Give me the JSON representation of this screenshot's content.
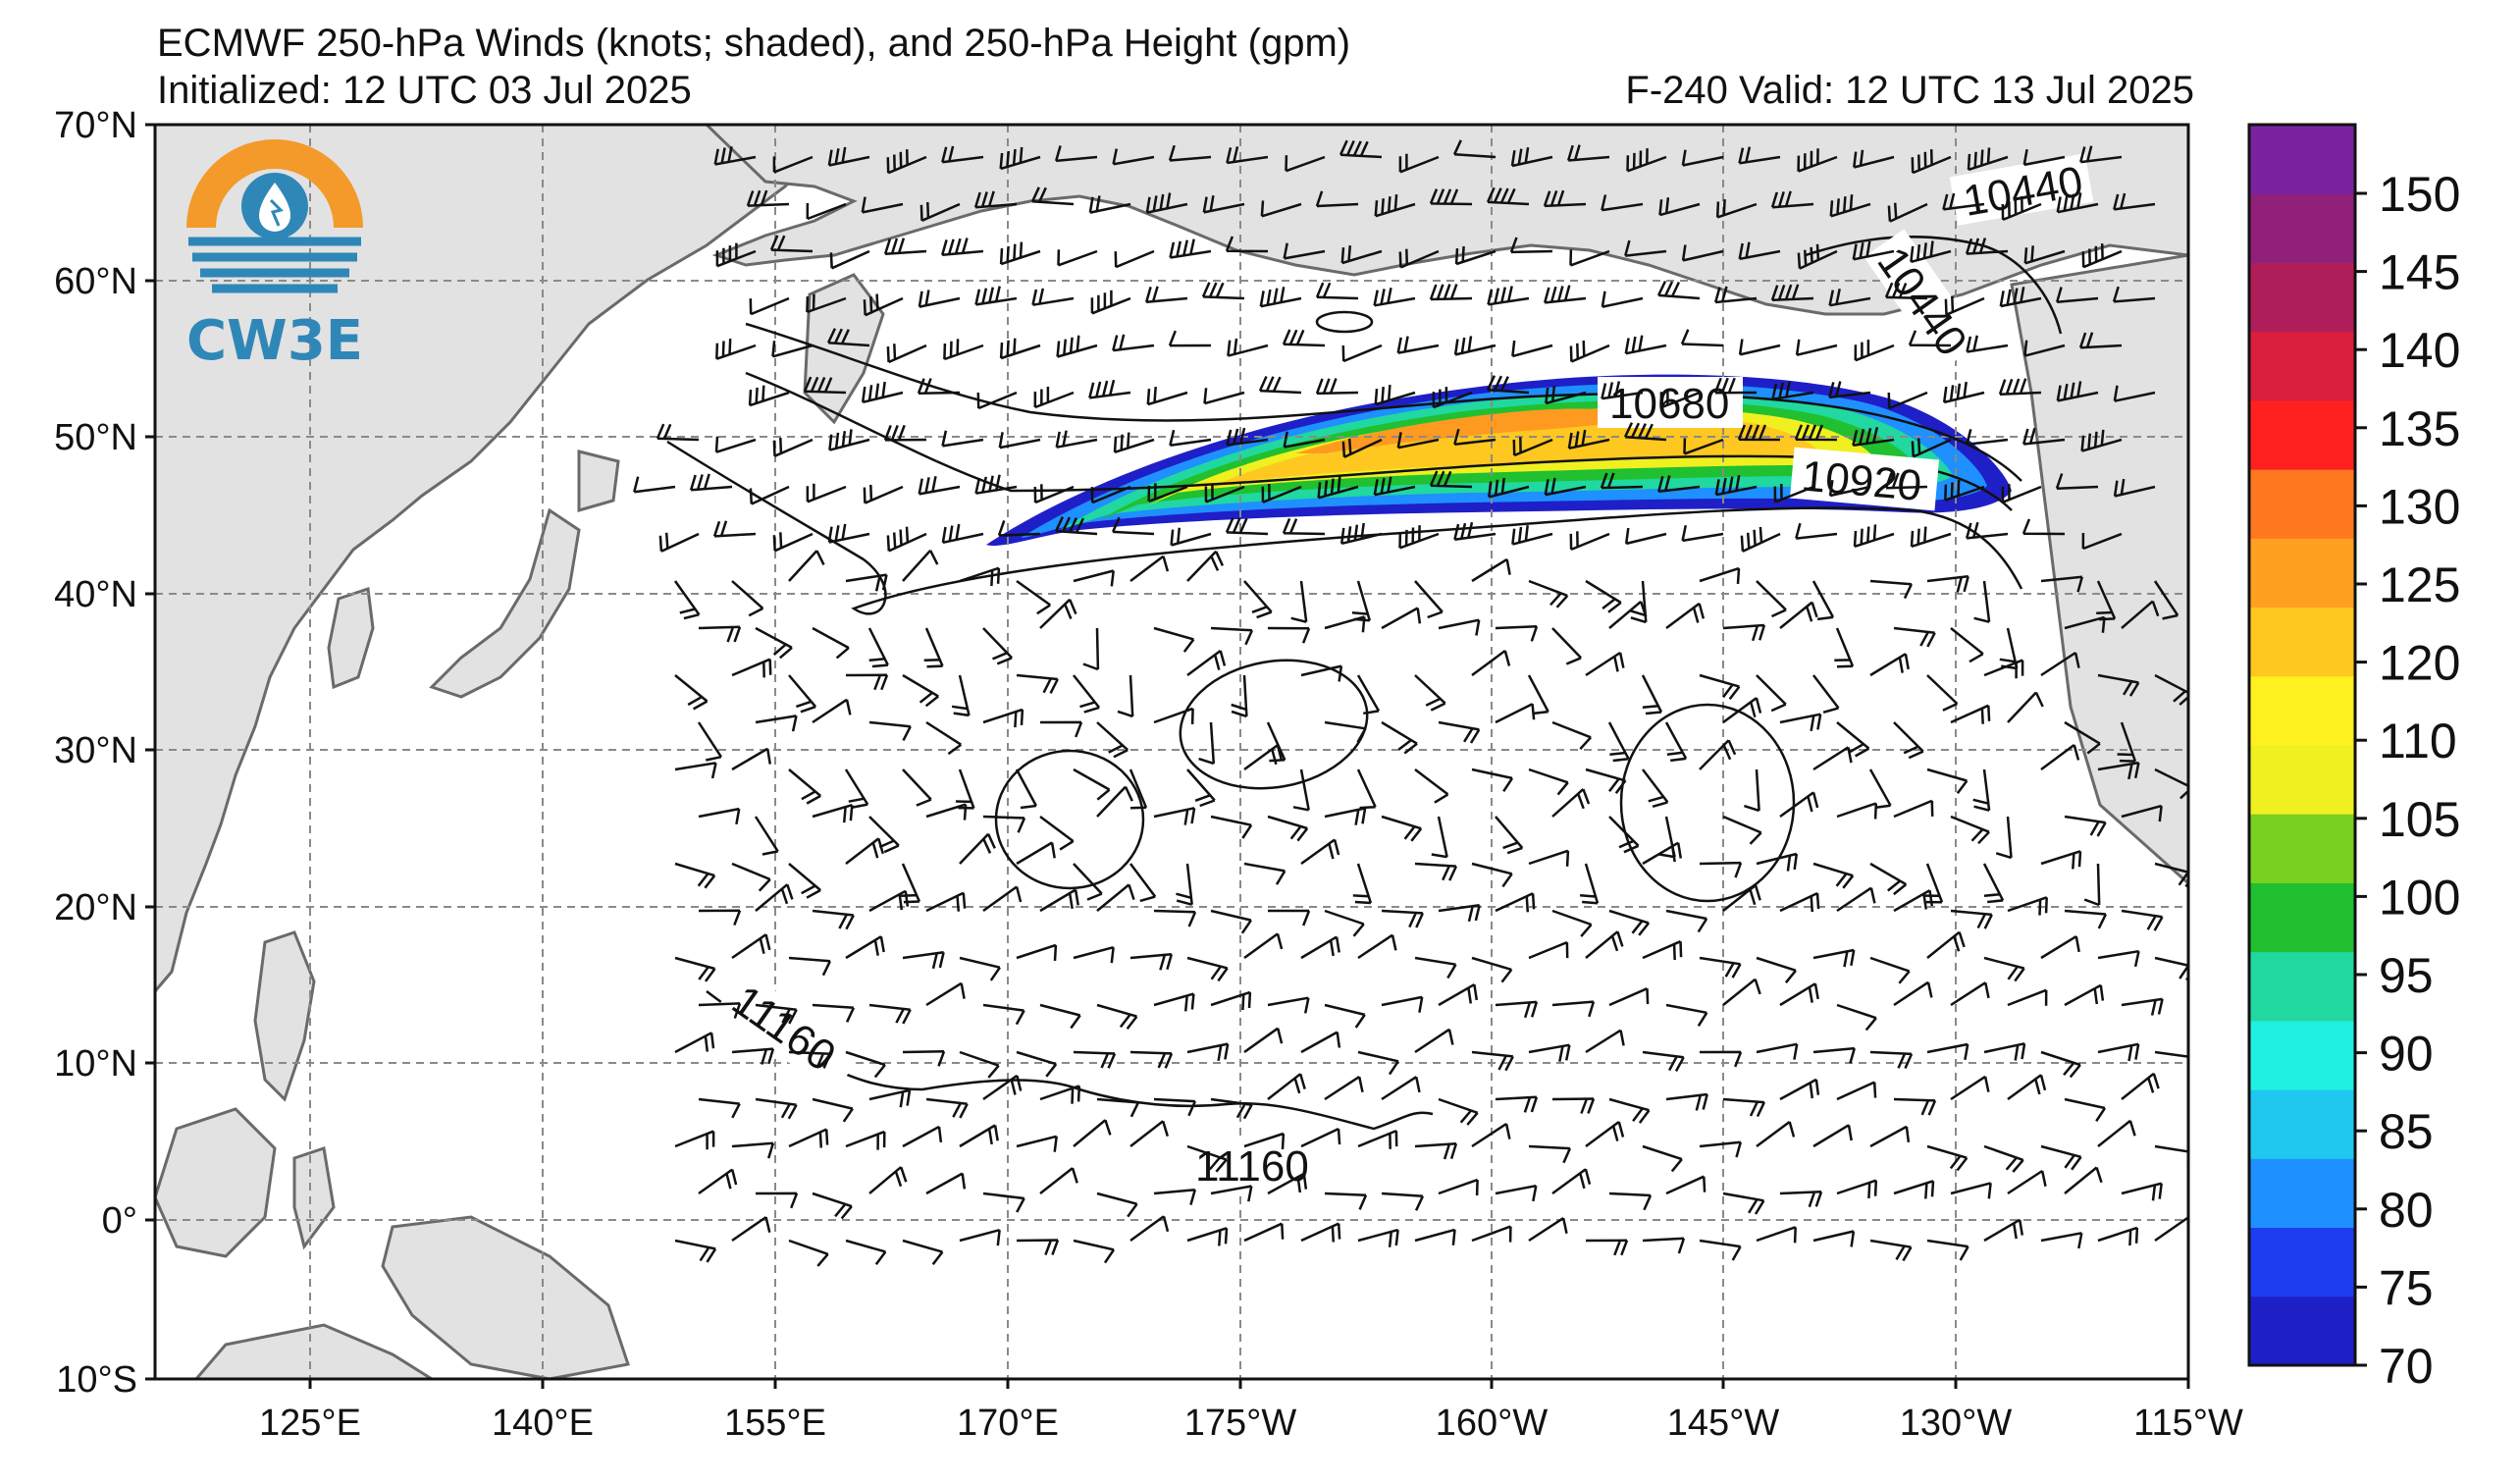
{
  "header": {
    "title": "ECMWF 250-hPa Winds (knots; shaded), and 250-hPa Height (gpm)",
    "initialized": "Initialized: 12 UTC 03 Jul 2025",
    "valid": "F-240  Valid: 12 UTC 13 Jul 2025"
  },
  "logo": {
    "text": "CW3E",
    "colors": {
      "orange": "#f39a2a",
      "blue": "#2f87b8"
    }
  },
  "axes": {
    "lat_labels": [
      "70°N",
      "60°N",
      "50°N",
      "40°N",
      "30°N",
      "20°N",
      "10°N",
      "0°",
      "10°S"
    ],
    "lon_labels": [
      "125°E",
      "140°E",
      "155°E",
      "170°E",
      "175°W",
      "160°W",
      "145°W",
      "130°W",
      "115°W"
    ]
  },
  "contour_labels": [
    "10440",
    "10440",
    "10680",
    "10920",
    "11160",
    "11160"
  ],
  "colorbar": {
    "ticks": [
      "150",
      "145",
      "140",
      "135",
      "130",
      "125",
      "120",
      "110",
      "105",
      "100",
      "95",
      "90",
      "85",
      "80",
      "75",
      "70"
    ],
    "colors": [
      "#1f1fc8",
      "#1e3cf0",
      "#1e90ff",
      "#20c8f0",
      "#20f0e0",
      "#20d8a0",
      "#20c030",
      "#7ad020",
      "#f0f020",
      "#fff020",
      "#ffc820",
      "#ffa020",
      "#ff7820",
      "#ff2020",
      "#d81e3c",
      "#b01e5a",
      "#90207a",
      "#7a22a0"
    ]
  },
  "map_colors": {
    "land": "#e2e2e2",
    "coast": "#6a6a6a",
    "grid": "#8a8a8a",
    "contour": "#111111"
  }
}
